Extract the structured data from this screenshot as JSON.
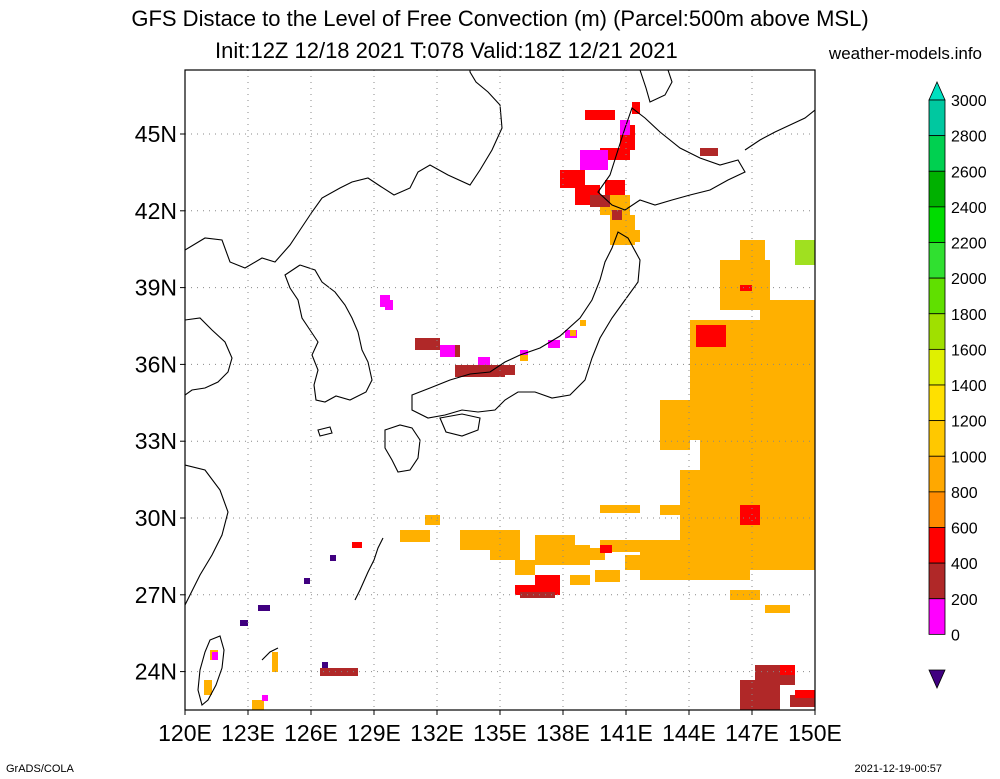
{
  "title": {
    "line1": "GFS Distace to the Level of Free Convection (m) (Parcel:500m above MSL)",
    "line2": "Init:12Z 12/18 2021 T:078 Valid:18Z 12/21 2021",
    "brand": "weather-models.info"
  },
  "footer": {
    "left": "GrADS/COLA",
    "right": "2021-12-19-00:57"
  },
  "map": {
    "lat_labels": [
      "45N",
      "42N",
      "39N",
      "36N",
      "33N",
      "30N",
      "27N",
      "24N"
    ],
    "lon_labels": [
      "120E",
      "123E",
      "126E",
      "129E",
      "132E",
      "135E",
      "138E",
      "141E",
      "144E",
      "147E",
      "150E"
    ]
  },
  "colorbar": {
    "labels": [
      "3000",
      "2800",
      "2600",
      "2400",
      "2200",
      "2000",
      "1800",
      "1600",
      "1400",
      "1200",
      "1000",
      "800",
      "600",
      "400",
      "200",
      "0"
    ],
    "colors": [
      "#00e0c0",
      "#00c8a0",
      "#00d050",
      "#00b000",
      "#00dc00",
      "#30e030",
      "#60e000",
      "#a0e000",
      "#e0f000",
      "#ffe000",
      "#ffc800",
      "#ffa800",
      "#ff8c00",
      "#ff0000",
      "#b02828",
      "#ff00ff",
      "#400080"
    ]
  },
  "field": {
    "orange": "#ffb000",
    "orange_dark": "#ff9a00",
    "red": "#ff0000",
    "brown": "#b02828",
    "magenta": "#ff00ff",
    "purple": "#400080",
    "green": "#a0e020"
  }
}
